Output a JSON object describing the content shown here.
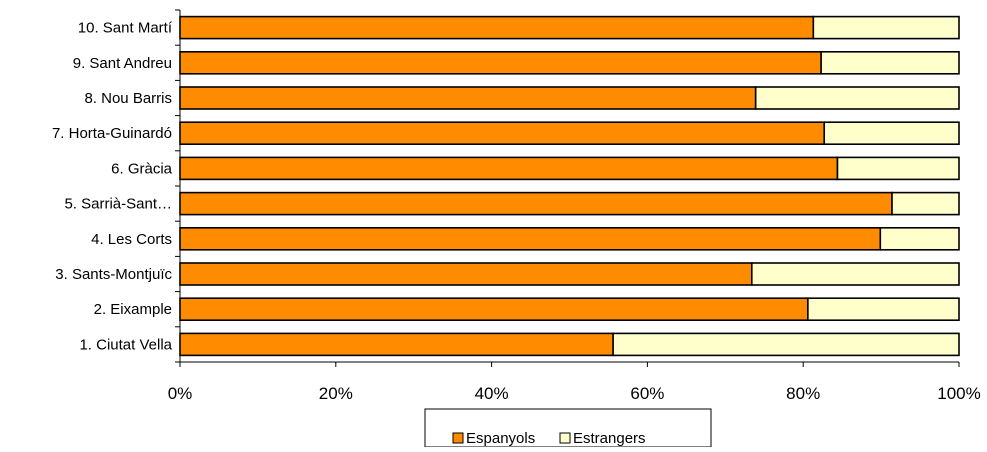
{
  "chart_data": {
    "type": "bar",
    "orientation": "horizontal",
    "stacked": "percent",
    "title": "",
    "xlabel": "",
    "ylabel": "",
    "categories": [
      "1. Ciutat Vella",
      "2. Eixample",
      "3. Sants-Montjuïc",
      "4. Les Corts",
      "5. Sarrià-Sant…",
      "6. Gràcia",
      "7. Horta-Guinardó",
      "8. Nou Barris",
      "9. Sant Andreu",
      "10. Sant Martí"
    ],
    "series": [
      {
        "name": "Espanyols",
        "color": "#ff8c00",
        "values": [
          55.6,
          80.6,
          73.4,
          89.9,
          91.4,
          84.4,
          82.7,
          73.9,
          82.3,
          81.3
        ]
      },
      {
        "name": "Estrangers",
        "color": "#ffffcc",
        "values": [
          44.4,
          19.4,
          26.6,
          10.1,
          8.6,
          15.6,
          17.3,
          26.1,
          17.7,
          18.7
        ]
      }
    ],
    "xlim": [
      0,
      100
    ],
    "xticks": [
      "0%",
      "20%",
      "40%",
      "60%",
      "80%",
      "100%"
    ],
    "grid": false,
    "legend": {
      "position": "bottom",
      "entries": [
        "Espanyols",
        "Estrangers"
      ]
    }
  }
}
